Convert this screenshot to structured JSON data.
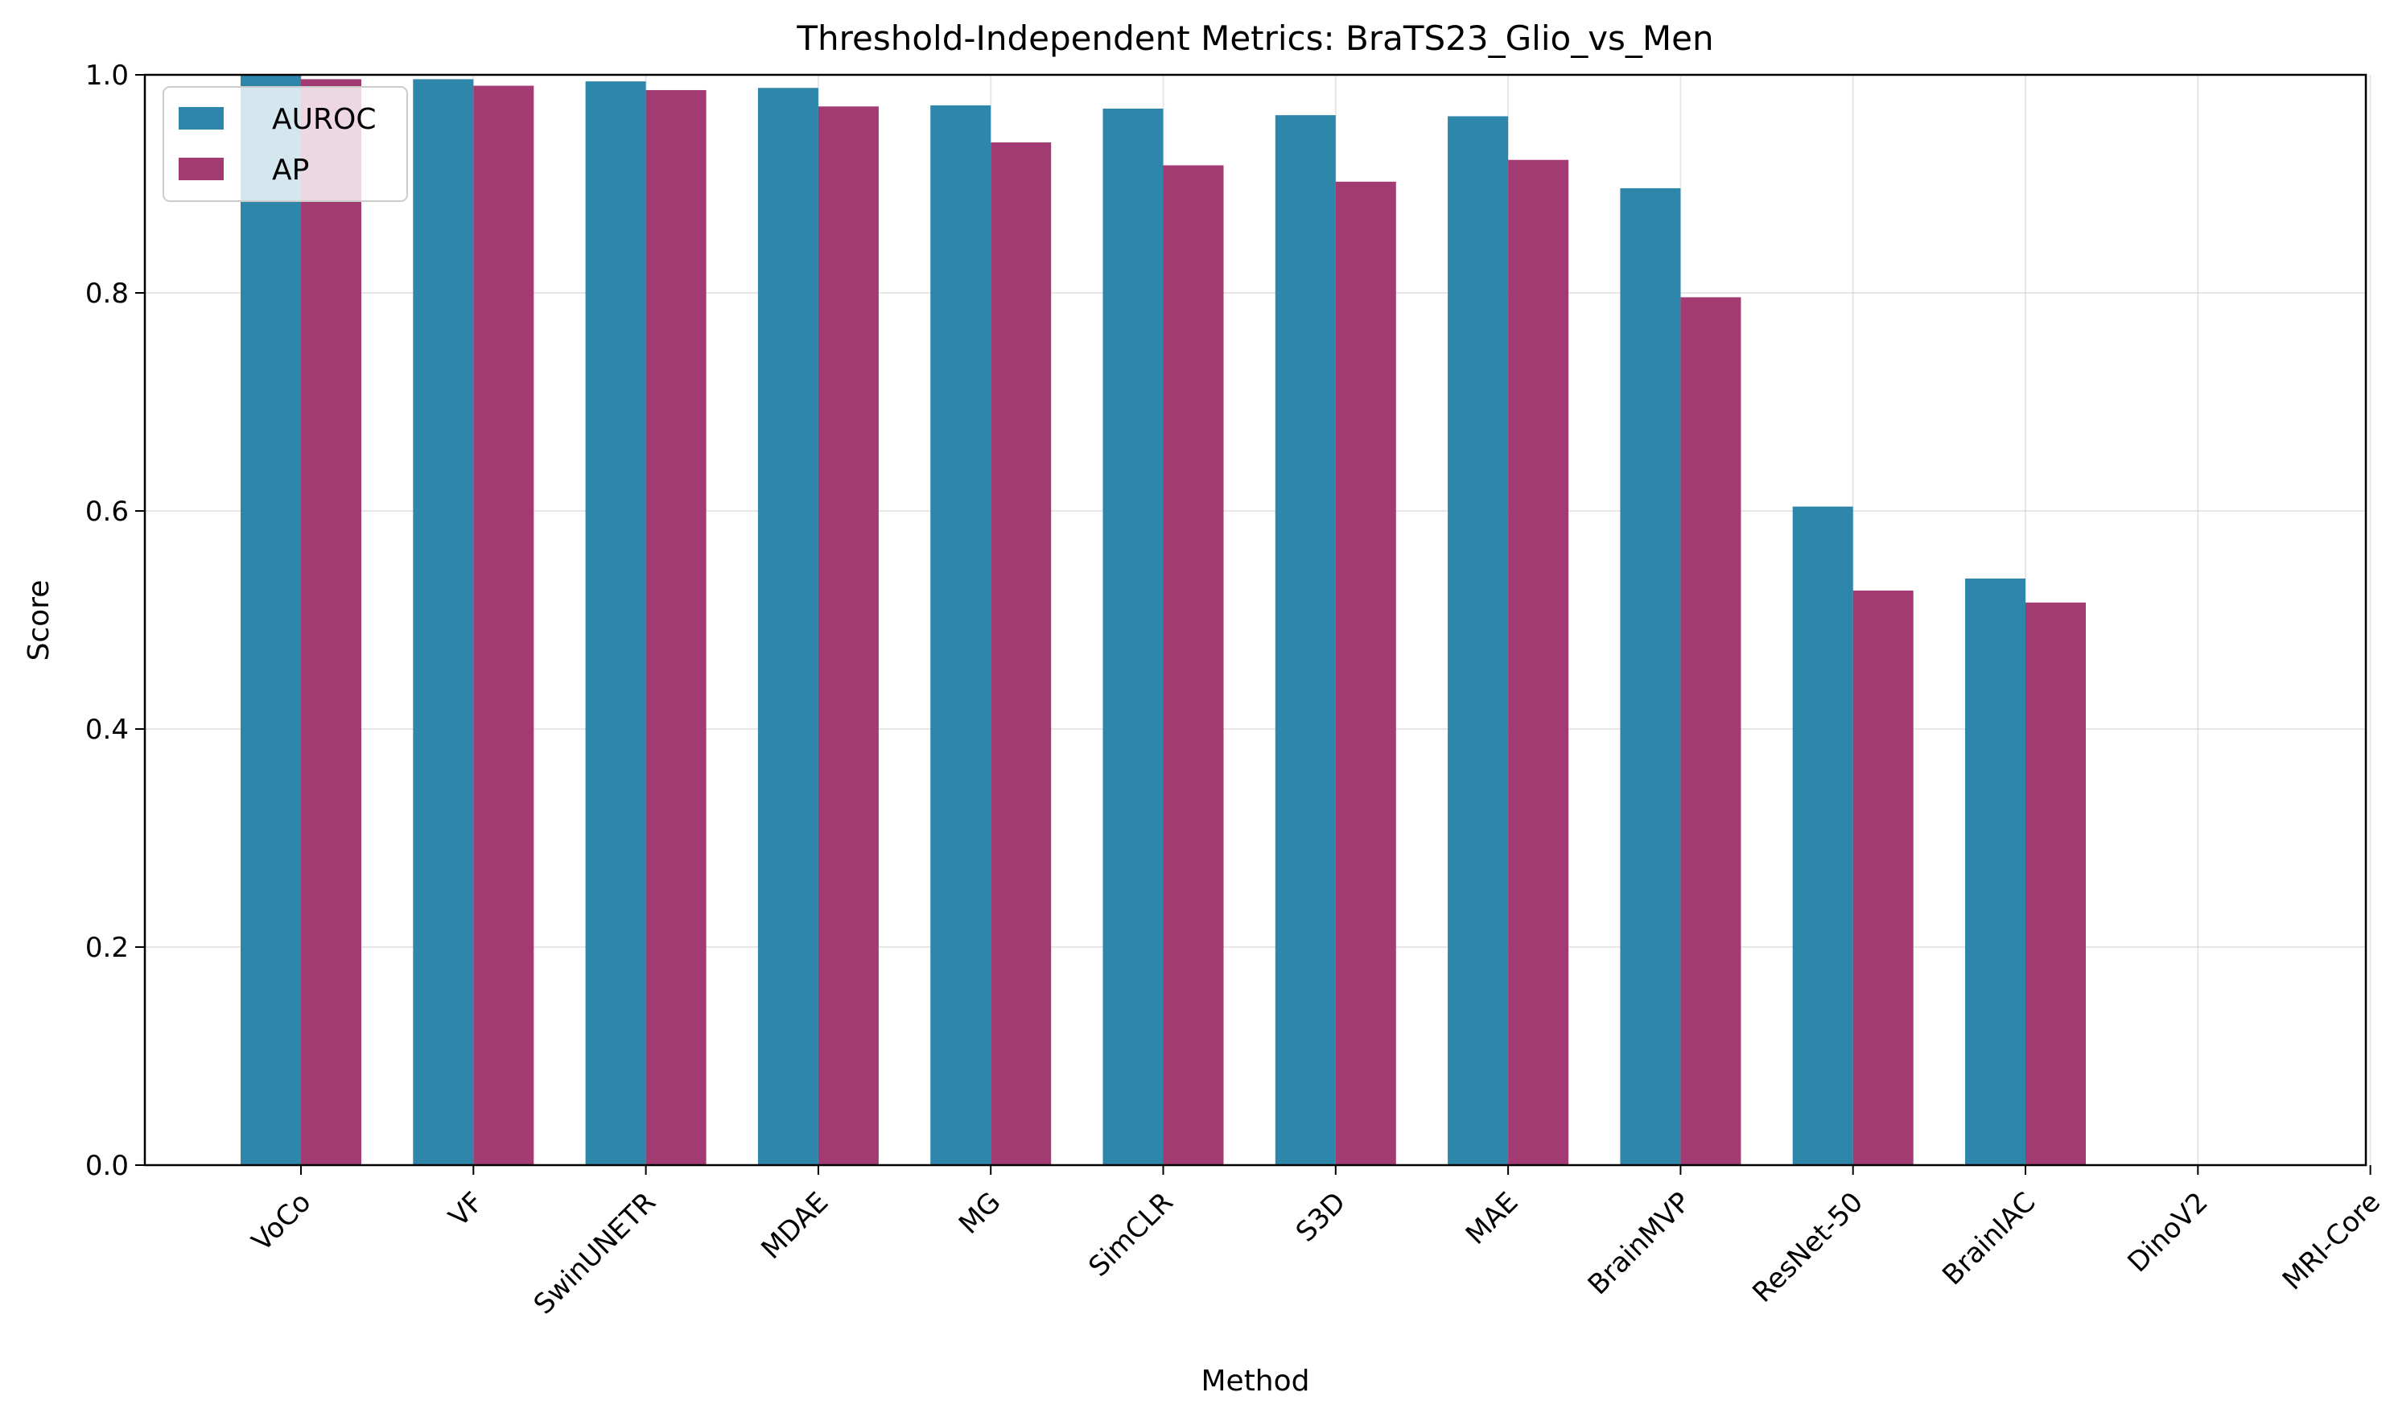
{
  "chart_data": {
    "type": "bar",
    "title": "Threshold-Independent Metrics: BraTS23_Glio_vs_Men",
    "xlabel": "Method",
    "ylabel": "Score",
    "ylim": [
      0.0,
      1.0
    ],
    "yticks": [
      "0.0",
      "0.2",
      "0.4",
      "0.6",
      "0.8",
      "1.0"
    ],
    "categories": [
      "VoCo",
      "VF",
      "SwinUNETR",
      "MDAE",
      "MG",
      "SimCLR",
      "S3D",
      "MAE",
      "BrainMVP",
      "ResNet-50",
      "BrainIAC",
      "DinoV2",
      "MRI-Core"
    ],
    "series": [
      {
        "name": "AUROC",
        "color": "#2e86ab",
        "values": [
          1.0,
          0.996,
          0.994,
          0.988,
          0.972,
          0.969,
          0.963,
          0.962,
          0.896,
          0.604,
          0.538,
          0,
          0
        ]
      },
      {
        "name": "AP",
        "color": "#a23b72",
        "values": [
          0.996,
          0.99,
          0.986,
          0.971,
          0.938,
          0.917,
          0.902,
          0.922,
          0.796,
          0.527,
          0.516,
          0,
          0
        ]
      }
    ],
    "grid": true,
    "legend_position": "top-left"
  }
}
